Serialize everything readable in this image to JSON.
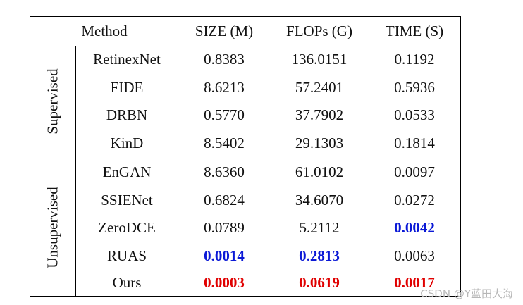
{
  "table": {
    "headers": [
      "Method",
      "SIZE (M)",
      "FLOPs (G)",
      "TIME (S)"
    ],
    "groups": [
      {
        "label": "Supervised",
        "rows": [
          {
            "method": "RetinexNet",
            "size": "0.8383",
            "flops": "136.0151",
            "time": "0.1192"
          },
          {
            "method": "FIDE",
            "size": "8.6213",
            "flops": "57.2401",
            "time": "0.5936"
          },
          {
            "method": "DRBN",
            "size": "0.5770",
            "flops": "37.7902",
            "time": "0.0533"
          },
          {
            "method": "KinD",
            "size": "8.5402",
            "flops": "29.1303",
            "time": "0.1814"
          }
        ]
      },
      {
        "label": "Unsupervised",
        "rows": [
          {
            "method": "EnGAN",
            "size": "8.6360",
            "flops": "61.0102",
            "time": "0.0097"
          },
          {
            "method": "SSIENet",
            "size": "0.6824",
            "flops": "34.6070",
            "time": "0.0272"
          },
          {
            "method": "ZeroDCE",
            "size": "0.0789",
            "flops": "5.2112",
            "time": "0.0042"
          },
          {
            "method": "RUAS",
            "size": "0.0014",
            "flops": "0.2813",
            "time": "0.0063"
          },
          {
            "method": "Ours",
            "size": "0.0003",
            "flops": "0.0619",
            "time": "0.0017"
          }
        ]
      }
    ],
    "highlight_colors": {
      "best": "#e00000",
      "second": "#0a18d6"
    }
  },
  "watermark": "CSDN @Y蓝田大海"
}
